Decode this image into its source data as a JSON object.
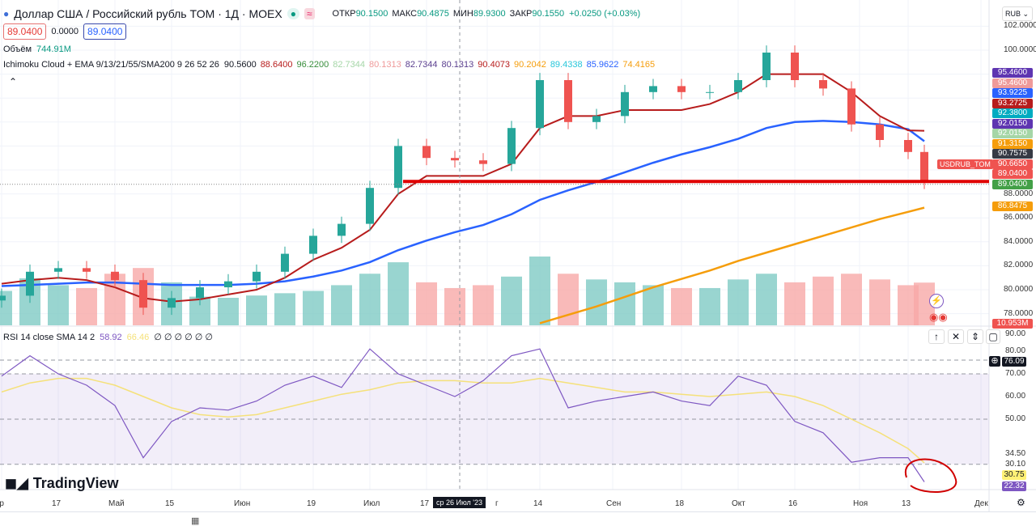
{
  "header": {
    "symbol": "Доллар США / Российский рубль TOM · 1Д · MOEX",
    "ohlc": [
      {
        "k": "ОТКР",
        "v": "90.1500"
      },
      {
        "k": "МАКС",
        "v": "90.4875"
      },
      {
        "k": "МИН",
        "v": "89.9300"
      },
      {
        "k": "ЗАКР",
        "v": "90.1550"
      }
    ],
    "change": "+0.0250 (+0.03%)",
    "bid": "89.0400",
    "spread": "0.0000",
    "ask": "89.0400",
    "volume_label": "Объём",
    "volume_value": "744.91M",
    "indicator": "Ichimoku Cloud + EMA 9/13/21/55/SMA200 9 26 52 26",
    "indicator_values": [
      {
        "v": "90.5600",
        "c": "#131722"
      },
      {
        "v": "88.6400",
        "c": "#b71c1c"
      },
      {
        "v": "96.2200",
        "c": "#388e3c"
      },
      {
        "v": "82.7344",
        "c": "#a5d6a7"
      },
      {
        "v": "80.1313",
        "c": "#ef9a9a"
      },
      {
        "v": "82.7344",
        "c": "#5b3f8f"
      },
      {
        "v": "80.1313",
        "c": "#5b3f8f"
      },
      {
        "v": "90.4073",
        "c": "#b71c1c"
      },
      {
        "v": "90.2042",
        "c": "#f59d0b"
      },
      {
        "v": "89.4338",
        "c": "#26c6da"
      },
      {
        "v": "85.9622",
        "c": "#2962ff"
      },
      {
        "v": "74.4165",
        "c": "#f59d0b"
      }
    ],
    "currency": "RUB"
  },
  "price_axis": [
    "102.0000",
    "100.0000",
    "88.0000",
    "86.0000",
    "84.0000",
    "82.0000",
    "80.0000",
    "78.0000"
  ],
  "price_labels": [
    {
      "v": "95.4600",
      "c": "#5e35b1"
    },
    {
      "v": "95.4600",
      "c": "#ef9a9a"
    },
    {
      "v": "93.9225",
      "c": "#2962ff"
    },
    {
      "v": "93.2725",
      "c": "#b71c1c"
    },
    {
      "v": "92.3800",
      "c": "#00acc1"
    },
    {
      "v": "92.0150",
      "c": "#5e35b1"
    },
    {
      "v": "92.0150",
      "c": "#a5d6a7"
    },
    {
      "v": "91.3150",
      "c": "#f59d0b"
    },
    {
      "v": "90.7575",
      "c": "#363a45"
    },
    {
      "v": "90.6650",
      "c": "#ef5350"
    },
    {
      "v": "89.0400",
      "c": "#ef5350"
    },
    {
      "v": "89.0400",
      "c": "#43a047"
    },
    {
      "v": "86.8475",
      "c": "#f59d0b"
    }
  ],
  "line_tag": "USDRUB_TOM",
  "volume_tag": "10.953M",
  "rsi": {
    "title": "RSI 14 close SMA 14 2",
    "value": "58.92",
    "sma": "66.46",
    "extra": "∅ ∅ ∅ ∅ ∅ ∅",
    "axis": [
      "90.00",
      "80.00",
      "70.00",
      "60.00",
      "50.00",
      "34.50",
      "30.10"
    ],
    "labels": [
      {
        "v": "76.09",
        "c": "#131722"
      },
      {
        "v": "30.75",
        "c": "#fff176"
      },
      {
        "v": "22.32",
        "c": "#7e57c2"
      }
    ]
  },
  "time_axis": [
    {
      "t": "пр",
      "d": "2023-04-03"
    },
    {
      "t": "17",
      "d": "2023-04-17"
    },
    {
      "t": "Май",
      "d": "2023-05-01"
    },
    {
      "t": "15",
      "d": "2023-05-15"
    },
    {
      "t": "Июн",
      "d": "2023-06-01"
    },
    {
      "t": "19",
      "d": "2023-06-19"
    },
    {
      "t": "Июл",
      "d": "2023-07-03"
    },
    {
      "t": "17",
      "d": "2023-07-17"
    },
    {
      "t": "г",
      "d": "2023-08-01"
    },
    {
      "t": "14",
      "d": "2023-08-14"
    },
    {
      "t": "Сен",
      "d": "2023-09-01"
    },
    {
      "t": "18",
      "d": "2023-09-18"
    },
    {
      "t": "Окт",
      "d": "2023-10-02"
    },
    {
      "t": "16",
      "d": "2023-10-16"
    },
    {
      "t": "Ноя",
      "d": "2023-11-01"
    },
    {
      "t": "13",
      "d": "2023-11-13"
    },
    {
      "t": "Дек",
      "d": "2023-12-01"
    }
  ],
  "crosshair_date": "ср 26 Июл '23",
  "brand": "TradingView",
  "colors": {
    "up": "#26a69a",
    "down": "#ef5350",
    "ema55": "#2962ff",
    "sma200": "#f59d0b",
    "kijun": "#b71c1c",
    "rsi": "#7e57c2",
    "rsi_sma": "#f5e17a",
    "line": "#e00000"
  },
  "chart_data": [
    {
      "type": "candlestick",
      "ylim": [
        77,
        102.5
      ],
      "horizontal_line": 89.04,
      "x": [
        "2023-04-03",
        "2023-04-10",
        "2023-04-17",
        "2023-04-24",
        "2023-05-01",
        "2023-05-08",
        "2023-05-15",
        "2023-05-22",
        "2023-05-29",
        "2023-06-05",
        "2023-06-12",
        "2023-06-19",
        "2023-06-26",
        "2023-07-03",
        "2023-07-10",
        "2023-07-17",
        "2023-07-24",
        "2023-07-31",
        "2023-08-07",
        "2023-08-14",
        "2023-08-21",
        "2023-08-28",
        "2023-09-04",
        "2023-09-11",
        "2023-09-18",
        "2023-09-25",
        "2023-10-02",
        "2023-10-09",
        "2023-10-16",
        "2023-10-23",
        "2023-10-30",
        "2023-11-06",
        "2023-11-13",
        "2023-11-17"
      ],
      "close": [
        79.5,
        81.5,
        81.8,
        81.5,
        80.8,
        78.5,
        79.3,
        80.2,
        80.7,
        81.5,
        83.0,
        84.5,
        85.5,
        88.5,
        92.0,
        91.0,
        90.8,
        90.5,
        93.5,
        97.5,
        94.0,
        94.5,
        96.5,
        97.0,
        96.5,
        96.5,
        97.5,
        99.8,
        97.5,
        96.8,
        93.8,
        92.5,
        91.5,
        89.0
      ],
      "volume": [
        600,
        820,
        700,
        650,
        900,
        1000,
        750,
        500,
        480,
        520,
        560,
        600,
        700,
        900,
        1100,
        750,
        650,
        700,
        850,
        1200,
        900,
        800,
        750,
        700,
        650,
        650,
        800,
        900,
        750,
        850,
        900,
        800,
        700,
        744.91
      ],
      "ema55": [
        80.3,
        80.4,
        80.5,
        80.6,
        80.6,
        80.5,
        80.4,
        80.4,
        80.4,
        80.5,
        80.7,
        81.1,
        81.6,
        82.3,
        83.3,
        84.1,
        84.8,
        85.4,
        86.3,
        87.5,
        88.3,
        89.0,
        89.8,
        90.6,
        91.3,
        91.9,
        92.6,
        93.5,
        94.0,
        94.1,
        94.0,
        93.8,
        93.4,
        92.4
      ],
      "sma200": [
        null,
        null,
        null,
        null,
        null,
        null,
        null,
        null,
        null,
        null,
        null,
        null,
        null,
        null,
        null,
        null,
        null,
        null,
        null,
        77.2,
        77.9,
        78.6,
        79.4,
        80.2,
        80.9,
        81.6,
        82.4,
        83.1,
        83.8,
        84.5,
        85.2,
        85.9,
        86.5,
        86.85
      ],
      "kijun": [
        80.5,
        80.8,
        81.0,
        80.8,
        80.2,
        79.3,
        79.0,
        79.2,
        79.6,
        80.0,
        81.0,
        82.5,
        83.5,
        85.0,
        88.0,
        89.5,
        89.5,
        89.5,
        90.5,
        93.5,
        94.5,
        94.5,
        95.0,
        95.0,
        95.0,
        95.5,
        96.5,
        98.0,
        98.0,
        98.0,
        96.5,
        94.5,
        93.3,
        93.27
      ]
    },
    {
      "type": "line",
      "name": "RSI 14",
      "ylim": [
        15,
        92
      ],
      "levels": [
        70,
        50,
        30.1
      ],
      "rsi": [
        69,
        78,
        70,
        65,
        56,
        33,
        49,
        55,
        54,
        58,
        65,
        69,
        64,
        81,
        70,
        65,
        60,
        67,
        78,
        81,
        55,
        58,
        60,
        62,
        58,
        56,
        69,
        65,
        49,
        44,
        31,
        33,
        33,
        22.32
      ],
      "rsi_sma": [
        62,
        66,
        68,
        68,
        65,
        60,
        55,
        52,
        51,
        52,
        55,
        58,
        61,
        63,
        66,
        67,
        67,
        66,
        66,
        68,
        66,
        64,
        62,
        62,
        61,
        60,
        61,
        62,
        60,
        56,
        50,
        44,
        37,
        30.75
      ]
    }
  ]
}
